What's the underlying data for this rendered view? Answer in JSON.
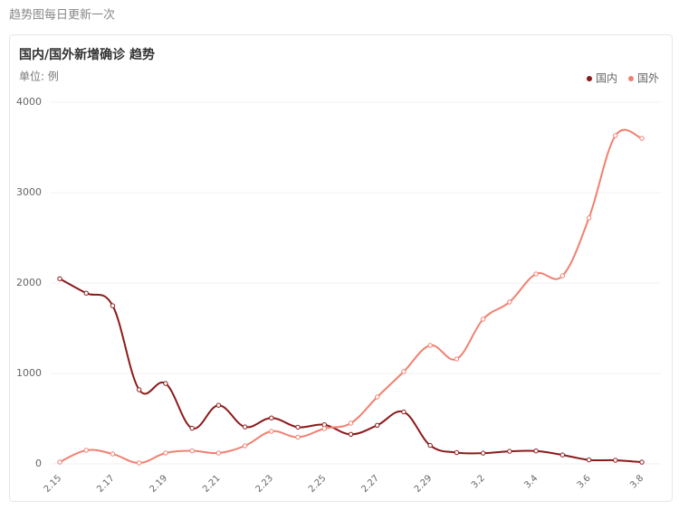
{
  "header": {
    "text": "趋势图每日更新一次"
  },
  "chart_data": {
    "type": "line",
    "title": "国内/国外新增确诊 趋势",
    "subtitle": "单位: 例",
    "categories": [
      "2.15",
      null,
      "2.17",
      null,
      "2.19",
      null,
      "2.21",
      null,
      "2.23",
      null,
      "2.25",
      null,
      "2.27",
      null,
      "2.29",
      null,
      "3.2",
      null,
      "3.4",
      null,
      "3.6",
      null,
      "3.8"
    ],
    "series": [
      {
        "name": "国内",
        "color": "#8b1a1a",
        "values": [
          2048,
          1888,
          1749,
          820,
          889,
          394,
          648,
          409,
          508,
          406,
          433,
          327,
          427,
          574,
          204,
          125,
          119,
          139,
          143,
          99,
          44,
          40,
          19
        ]
      },
      {
        "name": "国外",
        "color": "#f08070",
        "values": [
          20,
          150,
          110,
          10,
          120,
          145,
          120,
          200,
          360,
          295,
          390,
          450,
          740,
          1020,
          1310,
          1160,
          1600,
          1790,
          2100,
          2080,
          2720,
          3630,
          3600
        ]
      }
    ],
    "ylim": [
      0,
      4000
    ],
    "yticks": [
      0,
      1000,
      2000,
      3000,
      4000
    ],
    "grid": true,
    "legend": "top-right"
  }
}
